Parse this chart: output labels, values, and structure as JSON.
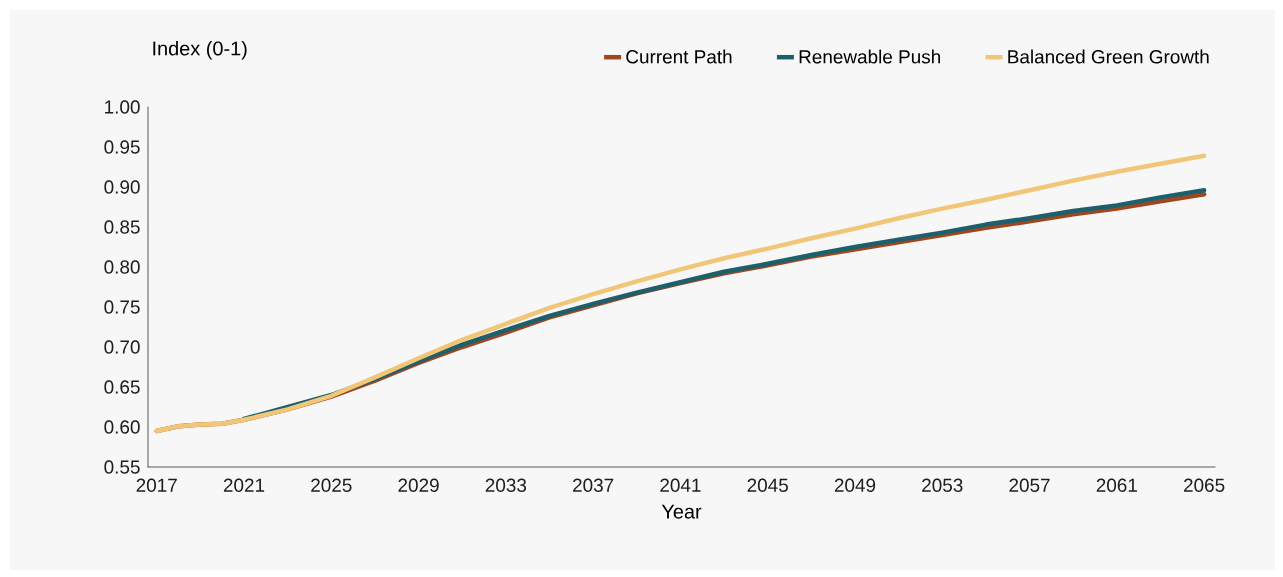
{
  "chart_data": {
    "type": "line",
    "xlabel": "Year",
    "ylabel": "Index (0-1)",
    "x": [
      2017,
      2018,
      2019,
      2020,
      2021,
      2023,
      2025,
      2027,
      2029,
      2031,
      2033,
      2035,
      2037,
      2039,
      2041,
      2043,
      2045,
      2047,
      2049,
      2051,
      2053,
      2055,
      2057,
      2059,
      2061,
      2063,
      2065
    ],
    "series": [
      {
        "name": "Current Path",
        "color": "#a0461f",
        "values": [
          0.595,
          0.601,
          0.603,
          0.604,
          0.609,
          0.622,
          0.638,
          0.658,
          0.68,
          0.7,
          0.718,
          0.737,
          0.752,
          0.767,
          0.78,
          0.792,
          0.802,
          0.813,
          0.822,
          0.831,
          0.84,
          0.849,
          0.857,
          0.866,
          0.873,
          0.882,
          0.891
        ]
      },
      {
        "name": "Renewable Push",
        "color": "#1d5f6b",
        "values": [
          null,
          null,
          null,
          null,
          0.61,
          0.625,
          0.64,
          0.66,
          0.682,
          0.703,
          0.721,
          0.739,
          0.754,
          0.768,
          0.781,
          0.794,
          0.804,
          0.815,
          0.825,
          0.834,
          0.843,
          0.853,
          0.861,
          0.87,
          0.877,
          0.887,
          0.896
        ]
      },
      {
        "name": "Balanced Green Growth",
        "color": "#f2c679",
        "values": [
          0.595,
          0.601,
          0.603,
          0.604,
          0.609,
          0.622,
          0.639,
          0.662,
          0.686,
          0.709,
          0.729,
          0.749,
          0.766,
          0.782,
          0.797,
          0.811,
          0.823,
          0.836,
          0.848,
          0.861,
          0.873,
          0.884,
          0.896,
          0.908,
          0.919,
          0.929,
          0.939
        ]
      }
    ],
    "xlim": [
      2016.6,
      2065.5
    ],
    "xticks": [
      2017,
      2021,
      2025,
      2029,
      2033,
      2037,
      2041,
      2045,
      2049,
      2053,
      2057,
      2061,
      2065
    ],
    "ylim": [
      0.55,
      1.0
    ],
    "yticks": [
      {
        "value": 0.55,
        "label": "0.55"
      },
      {
        "value": 0.6,
        "label": "0.60"
      },
      {
        "value": 0.65,
        "label": "0.65"
      },
      {
        "value": 0.7,
        "label": "0.70"
      },
      {
        "value": 0.75,
        "label": "0.75"
      },
      {
        "value": 0.8,
        "label": "0.80"
      },
      {
        "value": 0.85,
        "label": "0.85"
      },
      {
        "value": 0.9,
        "label": "0.90"
      },
      {
        "value": 0.95,
        "label": "0.95"
      },
      {
        "value": 1.0,
        "label": "1.00"
      }
    ],
    "grid": false,
    "legend": "top right",
    "marker": "none",
    "line_style": "solid"
  }
}
